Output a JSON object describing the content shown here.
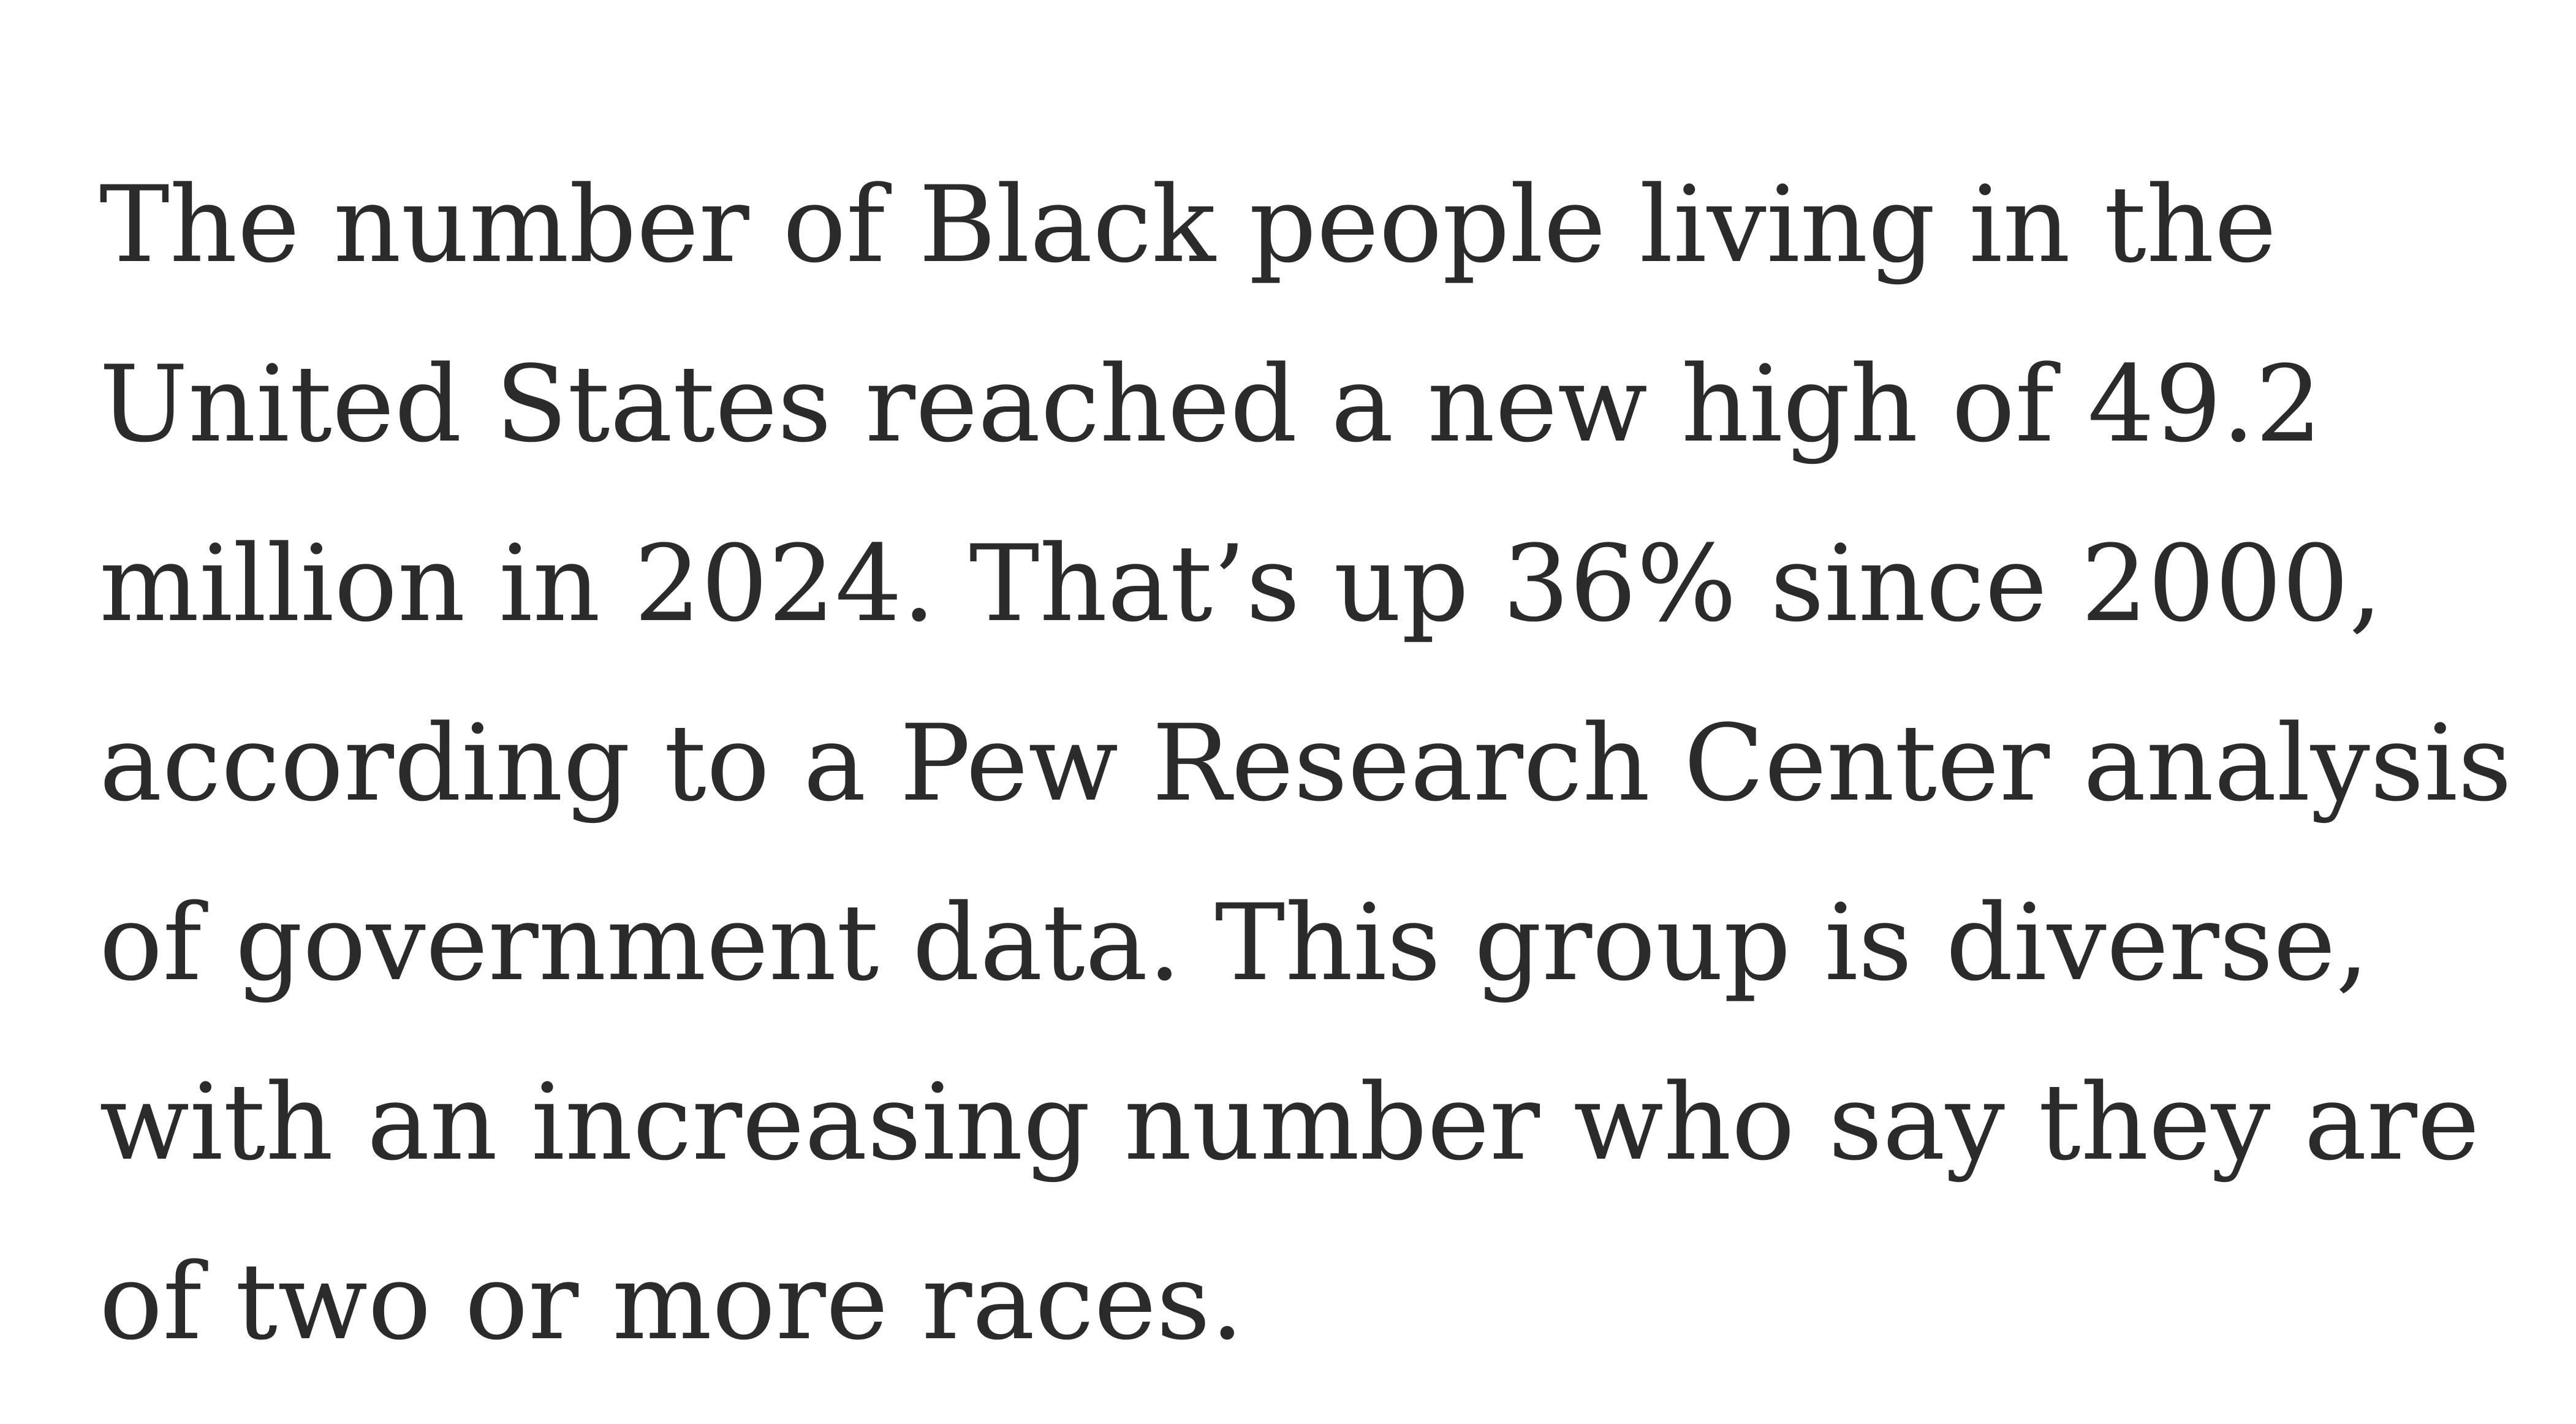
{
  "article": {
    "paragraph_lines": [
      "The number of Black people living in the",
      "United States reached a new high of 49.2",
      "million in 2024. That’s up 36% since 2000,",
      "according to a Pew Research Center analysis",
      "of government data. This group is diverse,",
      "with an increasing number who say they are",
      "of two or more races."
    ]
  },
  "colors": {
    "text": "#2b2b2b",
    "background": "#ffffff"
  }
}
